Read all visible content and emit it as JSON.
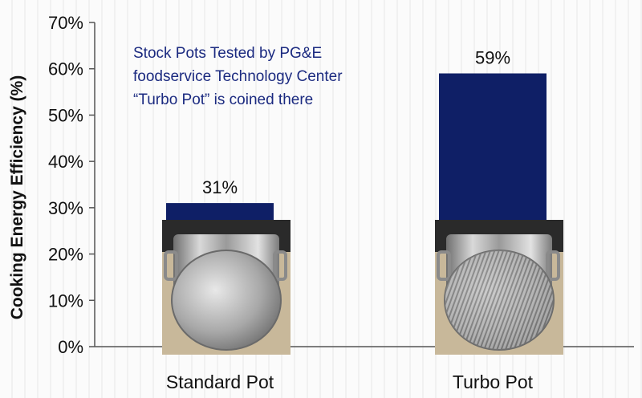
{
  "chart_data": {
    "type": "bar",
    "title": "",
    "annotation": [
      "Stock Pots Tested by PG&E",
      "foodservice Technology Center",
      "“Turbo Pot” is coined there"
    ],
    "xlabel": "",
    "ylabel": "Cooking Energy Efficiency (%)",
    "categories": [
      "Standard Pot",
      "Turbo Pot"
    ],
    "values": [
      31,
      59
    ],
    "data_labels": [
      "31%",
      "59%"
    ],
    "ylim": [
      0,
      70
    ],
    "yticks": [
      0,
      10,
      20,
      30,
      40,
      50,
      60,
      70
    ],
    "ytick_labels": [
      "0%",
      "10%",
      "20%",
      "30%",
      "40%",
      "50%",
      "60%",
      "70%"
    ],
    "grid": false,
    "legend": "none",
    "bar_color": "#0f1f66",
    "images": [
      "standard-pot-photo",
      "turbo-pot-photo"
    ]
  }
}
